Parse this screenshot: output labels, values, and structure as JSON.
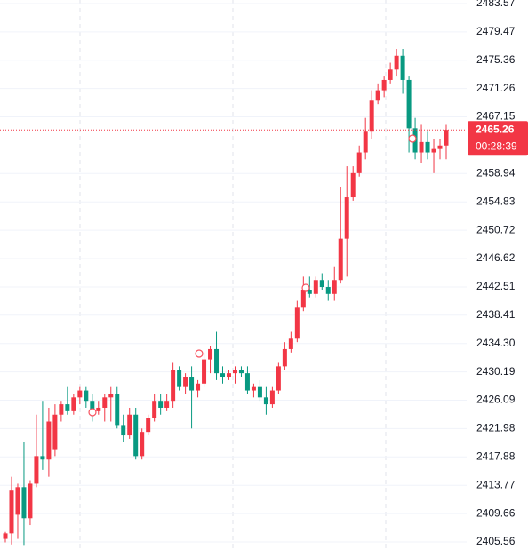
{
  "chart_data": {
    "type": "candlestick",
    "up_color": "#f23645",
    "down_color": "#089981",
    "open": [
      2406.0,
      2406.8,
      2409.5,
      2413.5,
      2409.0,
      2414.0,
      2418.0,
      2417.5,
      2419.0,
      2424.0,
      2425.5,
      2424.5,
      2426.5,
      2427.5,
      2426.0,
      2424.5,
      2425.0,
      2426.5,
      2427.0,
      2422.5,
      2421.0,
      2424.0,
      2418.0,
      2421.5,
      2423.5,
      2426.0,
      2425.0,
      2426.0,
      2430.5,
      2428.0,
      2429.5,
      2427.5,
      2428.5,
      2432.0,
      2433.5,
      2430.0,
      2429.5,
      2430.0,
      2430.5,
      2430.0,
      2427.5,
      2428.0,
      2426.5,
      2425.5,
      2427.5,
      2431.0,
      2433.5,
      2435.0,
      2439.5,
      2442.0,
      2441.5,
      2443.5,
      2442.5,
      2441.5,
      2443.5,
      2449.5,
      2455.5,
      2459.0,
      2462.0,
      2465.0,
      2469.5,
      2471.0,
      2472.5,
      2474.0,
      2476.0,
      2472.5,
      2465.5,
      2462.0,
      2463.5,
      2462.0,
      2462.5,
      2463.0
    ],
    "high": [
      2407.0,
      2415.0,
      2414.0,
      2420.0,
      2414.5,
      2424.0,
      2426.0,
      2425.0,
      2425.5,
      2426.0,
      2428.0,
      2427.0,
      2428.0,
      2428.0,
      2427.0,
      2426.0,
      2427.0,
      2428.0,
      2428.0,
      2424.0,
      2425.0,
      2425.0,
      2422.0,
      2424.0,
      2427.0,
      2427.0,
      2427.0,
      2431.5,
      2431.0,
      2430.0,
      2431.0,
      2429.0,
      2433.0,
      2434.0,
      2436.0,
      2431.0,
      2430.5,
      2431.0,
      2431.0,
      2431.0,
      2428.5,
      2429.0,
      2428.0,
      2428.0,
      2431.5,
      2434.5,
      2436.0,
      2440.5,
      2444.0,
      2444.0,
      2444.0,
      2444.5,
      2443.5,
      2445.5,
      2457.0,
      2460.0,
      2460.0,
      2463.0,
      2467.0,
      2471.0,
      2472.0,
      2473.0,
      2475.0,
      2477.0,
      2477.0,
      2473.0,
      2467.0,
      2466.0,
      2465.0,
      2464.0,
      2464.0,
      2466.0
    ],
    "low": [
      2405.5,
      2405.2,
      2406.0,
      2405.0,
      2408.0,
      2413.5,
      2416.0,
      2415.0,
      2418.0,
      2423.0,
      2424.0,
      2424.0,
      2425.5,
      2425.0,
      2423.0,
      2424.0,
      2423.0,
      2423.0,
      2422.0,
      2420.0,
      2420.5,
      2417.5,
      2417.5,
      2421.0,
      2423.0,
      2424.0,
      2424.5,
      2425.0,
      2427.5,
      2427.0,
      2422.0,
      2426.5,
      2428.0,
      2430.0,
      2429.0,
      2428.5,
      2429.0,
      2428.5,
      2429.5,
      2427.0,
      2426.5,
      2426.0,
      2424.0,
      2425.0,
      2427.0,
      2430.5,
      2433.0,
      2434.5,
      2439.0,
      2441.0,
      2441.0,
      2442.0,
      2440.5,
      2440.5,
      2443.0,
      2444.0,
      2455.0,
      2458.5,
      2461.0,
      2464.0,
      2469.0,
      2470.0,
      2472.0,
      2473.0,
      2470.5,
      2462.0,
      2461.0,
      2460.5,
      2461.0,
      2459.0,
      2461.0,
      2461.0
    ],
    "close": [
      2406.8,
      2413.0,
      2413.5,
      2409.0,
      2414.0,
      2418.0,
      2417.5,
      2423.0,
      2424.0,
      2425.5,
      2424.5,
      2426.5,
      2427.5,
      2426.0,
      2424.5,
      2425.0,
      2426.5,
      2427.0,
      2422.5,
      2421.0,
      2424.0,
      2418.0,
      2421.5,
      2423.5,
      2426.0,
      2425.0,
      2426.0,
      2430.5,
      2428.0,
      2429.5,
      2427.5,
      2428.5,
      2432.0,
      2433.5,
      2430.0,
      2429.5,
      2430.0,
      2430.5,
      2430.0,
      2427.5,
      2428.0,
      2426.5,
      2425.5,
      2427.5,
      2431.0,
      2433.5,
      2435.0,
      2439.5,
      2442.0,
      2441.5,
      2443.5,
      2442.5,
      2441.5,
      2443.5,
      2449.5,
      2455.5,
      2459.0,
      2462.0,
      2465.0,
      2469.5,
      2471.0,
      2472.5,
      2474.0,
      2476.0,
      2472.5,
      2465.5,
      2462.0,
      2463.5,
      2462.0,
      2462.5,
      2463.0,
      2465.26
    ],
    "ylim": [
      2404.53,
      2484.08
    ],
    "yticks": [
      2483.57,
      2479.47,
      2475.36,
      2471.26,
      2467.15,
      2458.94,
      2454.83,
      2450.72,
      2446.62,
      2442.51,
      2438.41,
      {
        "value": 2434.3,
        "label": "2434.30"
      },
      2430.19,
      2426.09,
      2421.98,
      2417.88,
      2413.77,
      2409.66,
      2405.56
    ],
    "grid": true,
    "last_price": 2465.26,
    "countdown": "00:28:39",
    "badge_color": "#f23645"
  }
}
